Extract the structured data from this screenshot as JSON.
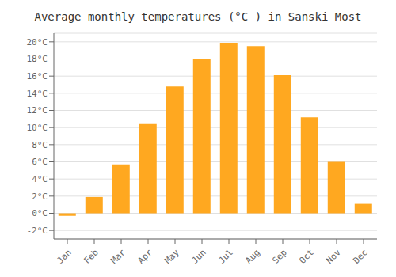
{
  "chart_data": {
    "type": "bar",
    "title": "Average monthly temperatures (°C ) in Sanski Most",
    "categories": [
      "Jan",
      "Feb",
      "Mar",
      "Apr",
      "May",
      "Jun",
      "Jul",
      "Aug",
      "Sep",
      "Oct",
      "Nov",
      "Dec"
    ],
    "values": [
      -0.3,
      1.9,
      5.7,
      10.4,
      14.8,
      18.0,
      19.9,
      19.5,
      16.1,
      11.2,
      6.0,
      1.1
    ],
    "color": "#FFA820",
    "ylim": [
      -3,
      21
    ],
    "yticks": [
      {
        "value": -2,
        "label": "-2°C"
      },
      {
        "value": 0,
        "label": "0°C"
      },
      {
        "value": 2,
        "label": "2°C"
      },
      {
        "value": 4,
        "label": "4°C"
      },
      {
        "value": 6,
        "label": "6°C"
      },
      {
        "value": 8,
        "label": "8°C"
      },
      {
        "value": 10,
        "label": "10°C"
      },
      {
        "value": 12,
        "label": "12°C"
      },
      {
        "value": 14,
        "label": "14°C"
      },
      {
        "value": 16,
        "label": "16°C"
      },
      {
        "value": 18,
        "label": "18°C"
      },
      {
        "value": 20,
        "label": "20°C"
      }
    ],
    "grid": true
  }
}
